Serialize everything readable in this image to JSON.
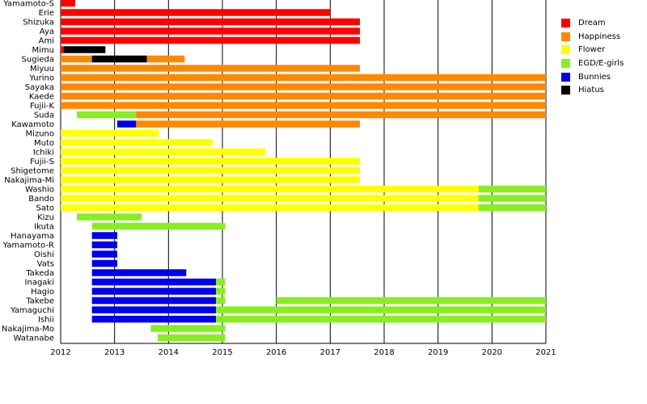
{
  "chart_data": {
    "type": "timeline",
    "title": "",
    "xlabel": "",
    "ylabel": "",
    "xlim": [
      2012,
      2021
    ],
    "x_ticks": [
      "2012",
      "2013",
      "2014",
      "2015",
      "2016",
      "2017",
      "2018",
      "2019",
      "2020",
      "2021"
    ],
    "grid": "vertical lines at each year",
    "legend_position": "right",
    "groups": [
      {
        "name": "Dream",
        "color": "#ff0000"
      },
      {
        "name": "Happiness",
        "color": "#ff8800"
      },
      {
        "name": "Flower",
        "color": "#ffff00"
      },
      {
        "name": "EGD/E-girls",
        "color": "#88ee22"
      },
      {
        "name": "Bunnies",
        "color": "#0000ee"
      },
      {
        "name": "Hiatus",
        "color": "#000000"
      }
    ],
    "members": [
      {
        "name": "Yamamoto-S",
        "spans": [
          {
            "group": "Dream",
            "start": 2012.0,
            "end": 2012.27
          }
        ]
      },
      {
        "name": "Erie",
        "spans": [
          {
            "group": "Dream",
            "start": 2012.0,
            "end": 2017.0
          }
        ]
      },
      {
        "name": "Shizuka",
        "spans": [
          {
            "group": "Dream",
            "start": 2012.0,
            "end": 2017.55
          }
        ]
      },
      {
        "name": "Aya",
        "spans": [
          {
            "group": "Dream",
            "start": 2012.0,
            "end": 2017.55
          }
        ]
      },
      {
        "name": "Ami",
        "spans": [
          {
            "group": "Dream",
            "start": 2012.0,
            "end": 2017.55
          }
        ]
      },
      {
        "name": "Mimu",
        "spans": [
          {
            "group": "Dream",
            "start": 2012.0,
            "end": 2012.06
          },
          {
            "group": "Hiatus",
            "start": 2012.06,
            "end": 2012.83
          }
        ]
      },
      {
        "name": "Sugieda",
        "spans": [
          {
            "group": "Happiness",
            "start": 2012.0,
            "end": 2012.58
          },
          {
            "group": "Hiatus",
            "start": 2012.58,
            "end": 2013.6
          },
          {
            "group": "Happiness",
            "start": 2013.6,
            "end": 2014.3
          }
        ]
      },
      {
        "name": "Miyuu",
        "spans": [
          {
            "group": "Happiness",
            "start": 2012.0,
            "end": 2017.55
          }
        ]
      },
      {
        "name": "Yurino",
        "spans": [
          {
            "group": "Happiness",
            "start": 2012.0,
            "end": 2021.0
          }
        ]
      },
      {
        "name": "Sayaka",
        "spans": [
          {
            "group": "Happiness",
            "start": 2012.0,
            "end": 2021.0
          }
        ]
      },
      {
        "name": "Kaede",
        "spans": [
          {
            "group": "Happiness",
            "start": 2012.0,
            "end": 2021.0
          }
        ]
      },
      {
        "name": "Fujii-K",
        "spans": [
          {
            "group": "Happiness",
            "start": 2012.0,
            "end": 2021.0
          }
        ]
      },
      {
        "name": "Suda",
        "spans": [
          {
            "group": "EGD/E-girls",
            "start": 2012.3,
            "end": 2013.4
          },
          {
            "group": "Happiness",
            "start": 2013.4,
            "end": 2021.0
          }
        ]
      },
      {
        "name": "Kawamoto",
        "spans": [
          {
            "group": "Bunnies",
            "start": 2013.05,
            "end": 2013.4
          },
          {
            "group": "Happiness",
            "start": 2013.4,
            "end": 2017.55
          }
        ]
      },
      {
        "name": "Mizuno",
        "spans": [
          {
            "group": "Flower",
            "start": 2012.0,
            "end": 2013.82
          }
        ]
      },
      {
        "name": "Muto",
        "spans": [
          {
            "group": "Flower",
            "start": 2012.0,
            "end": 2014.82
          }
        ]
      },
      {
        "name": "Ichiki",
        "spans": [
          {
            "group": "Flower",
            "start": 2012.0,
            "end": 2015.8
          }
        ]
      },
      {
        "name": "Fujii-S",
        "spans": [
          {
            "group": "Flower",
            "start": 2012.0,
            "end": 2017.55
          }
        ]
      },
      {
        "name": "Shigetome",
        "spans": [
          {
            "group": "Flower",
            "start": 2012.0,
            "end": 2017.55
          }
        ]
      },
      {
        "name": "Nakajima-Mi",
        "spans": [
          {
            "group": "Flower",
            "start": 2012.0,
            "end": 2017.55
          }
        ]
      },
      {
        "name": "Washio",
        "spans": [
          {
            "group": "Flower",
            "start": 2012.0,
            "end": 2019.75
          },
          {
            "group": "EGD/E-girls",
            "start": 2019.75,
            "end": 2021.0
          }
        ]
      },
      {
        "name": "Bando",
        "spans": [
          {
            "group": "Flower",
            "start": 2012.0,
            "end": 2019.75
          },
          {
            "group": "EGD/E-girls",
            "start": 2019.75,
            "end": 2021.0
          }
        ]
      },
      {
        "name": "Sato",
        "spans": [
          {
            "group": "Flower",
            "start": 2012.0,
            "end": 2019.75
          },
          {
            "group": "EGD/E-girls",
            "start": 2019.75,
            "end": 2021.0
          }
        ]
      },
      {
        "name": "Kizu",
        "spans": [
          {
            "group": "EGD/E-girls",
            "start": 2012.3,
            "end": 2013.5
          }
        ]
      },
      {
        "name": "Ikuta",
        "spans": [
          {
            "group": "EGD/E-girls",
            "start": 2012.58,
            "end": 2015.05
          }
        ]
      },
      {
        "name": "Hanayama",
        "spans": [
          {
            "group": "Bunnies",
            "start": 2012.58,
            "end": 2013.05
          }
        ]
      },
      {
        "name": "Yamamoto-R",
        "spans": [
          {
            "group": "Bunnies",
            "start": 2012.58,
            "end": 2013.05
          }
        ]
      },
      {
        "name": "Oishi",
        "spans": [
          {
            "group": "Bunnies",
            "start": 2012.58,
            "end": 2013.05
          }
        ]
      },
      {
        "name": "Vats",
        "spans": [
          {
            "group": "Bunnies",
            "start": 2012.58,
            "end": 2013.05
          }
        ]
      },
      {
        "name": "Takeda",
        "spans": [
          {
            "group": "Bunnies",
            "start": 2012.58,
            "end": 2014.33
          }
        ]
      },
      {
        "name": "Inagaki",
        "spans": [
          {
            "group": "Bunnies",
            "start": 2012.58,
            "end": 2014.88
          },
          {
            "group": "EGD/E-girls",
            "start": 2014.88,
            "end": 2015.05
          }
        ]
      },
      {
        "name": "Hagio",
        "spans": [
          {
            "group": "Bunnies",
            "start": 2012.58,
            "end": 2014.88
          },
          {
            "group": "EGD/E-girls",
            "start": 2014.88,
            "end": 2015.05
          }
        ]
      },
      {
        "name": "Takebe",
        "spans": [
          {
            "group": "Bunnies",
            "start": 2012.58,
            "end": 2014.88
          },
          {
            "group": "EGD/E-girls",
            "start": 2014.88,
            "end": 2015.05
          },
          {
            "group": "EGD/E-girls",
            "start": 2016.0,
            "end": 2021.0
          }
        ]
      },
      {
        "name": "Yamaguchi",
        "spans": [
          {
            "group": "Bunnies",
            "start": 2012.58,
            "end": 2014.88
          },
          {
            "group": "EGD/E-girls",
            "start": 2014.88,
            "end": 2021.0
          }
        ]
      },
      {
        "name": "Ishii",
        "spans": [
          {
            "group": "Bunnies",
            "start": 2012.58,
            "end": 2014.88
          },
          {
            "group": "EGD/E-girls",
            "start": 2014.88,
            "end": 2021.0
          }
        ]
      },
      {
        "name": "Nakajima-Mo",
        "spans": [
          {
            "group": "EGD/E-girls",
            "start": 2013.67,
            "end": 2015.05
          }
        ]
      },
      {
        "name": "Watanabe",
        "spans": [
          {
            "group": "EGD/E-girls",
            "start": 2013.8,
            "end": 2015.05
          }
        ]
      }
    ]
  }
}
